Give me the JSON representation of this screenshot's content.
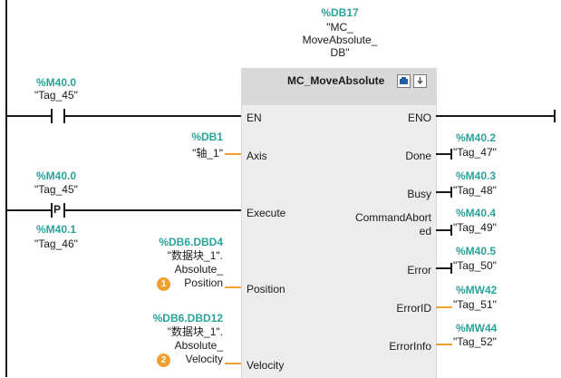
{
  "instance_db": {
    "address": "%DB17",
    "name_lines": [
      "\"MC_",
      "MoveAbsolute_",
      "DB\""
    ]
  },
  "block": {
    "title": "MC_MoveAbsolute",
    "inputs": [
      "EN",
      "Axis",
      "Execute",
      "Position",
      "Velocity"
    ],
    "outputs": [
      "ENO",
      "Done",
      "Busy",
      "CommandAborted",
      "Error",
      "ErrorID",
      "ErrorInfo"
    ],
    "output_commandaborted_lines": [
      "CommandAbort",
      "ed"
    ]
  },
  "contacts": {
    "en": {
      "address": "%M40.0",
      "tag": "\"Tag_45\""
    },
    "execute": {
      "address": "%M40.0",
      "tag": "\"Tag_45\"",
      "symbol": "P"
    },
    "execute_edge": {
      "address": "%M40.1",
      "tag": "\"Tag_46\""
    }
  },
  "params": {
    "axis": {
      "address": "%DB1",
      "tag": "\"轴_1\""
    },
    "position": {
      "address": "%DB6.DBD4",
      "tag_lines": [
        "\"数据块_1\".",
        "Absolute_",
        "Position"
      ],
      "badge": "1"
    },
    "velocity": {
      "address": "%DB6.DBD12",
      "tag_lines": [
        "\"数据块_1\".",
        "Absolute_",
        "Velocity"
      ],
      "badge": "2"
    }
  },
  "outputs": {
    "done": {
      "address": "%M40.2",
      "tag": "\"Tag_47\""
    },
    "busy": {
      "address": "%M40.3",
      "tag": "\"Tag_48\""
    },
    "aborted": {
      "address": "%M40.4",
      "tag": "\"Tag_49\""
    },
    "error": {
      "address": "%M40.5",
      "tag": "\"Tag_50\""
    },
    "errorid": {
      "address": "%MW42",
      "tag": "\"Tag_51\""
    },
    "errorinfo": {
      "address": "%MW44",
      "tag": "\"Tag_52\""
    }
  },
  "colors": {
    "address": "#2aa39a",
    "highlight": "#f0a030",
    "rail": "#1a1a1a"
  }
}
